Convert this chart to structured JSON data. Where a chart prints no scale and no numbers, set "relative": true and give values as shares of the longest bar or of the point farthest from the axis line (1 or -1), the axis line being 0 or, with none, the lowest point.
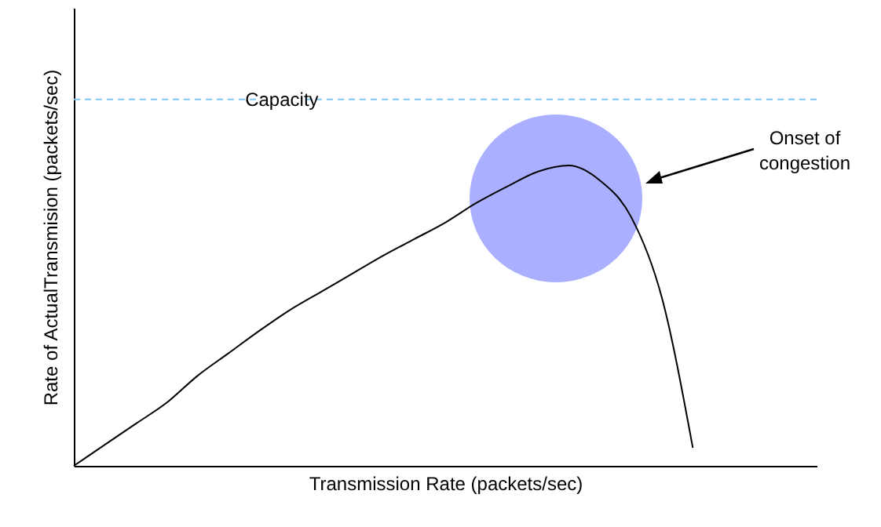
{
  "chart_data": {
    "type": "line",
    "relative": true,
    "xlabel": "Transmission Rate (packets/sec)",
    "ylabel": "Rate of ActualTransmision (packets/sec)",
    "categories": [
      null,
      null,
      null,
      null,
      null,
      null,
      null,
      null,
      null,
      null,
      null,
      null,
      null,
      null,
      null,
      null,
      null,
      null,
      null,
      null,
      null,
      null,
      null,
      null,
      null
    ],
    "series": [
      {
        "color": "#000000",
        "values": [
          0,
          0.07,
          0.14,
          0.21,
          0.3,
          0.375,
          0.45,
          0.52,
          0.58,
          0.64,
          0.7,
          0.755,
          0.81,
          0.875,
          0.93,
          0.98,
          1,
          0.95,
          0.83,
          0.56,
          0.06,
          null,
          null,
          null,
          null
        ]
      }
    ],
    "ref_lines": [
      {
        "axis": "y",
        "value": 1.22,
        "label": "Capacity",
        "color": "#7ec8f0",
        "line_style": "dashed"
      }
    ],
    "annotations": [
      "Onset of congestion"
    ],
    "grid": false,
    "marker": "none",
    "line_style": "solid"
  }
}
